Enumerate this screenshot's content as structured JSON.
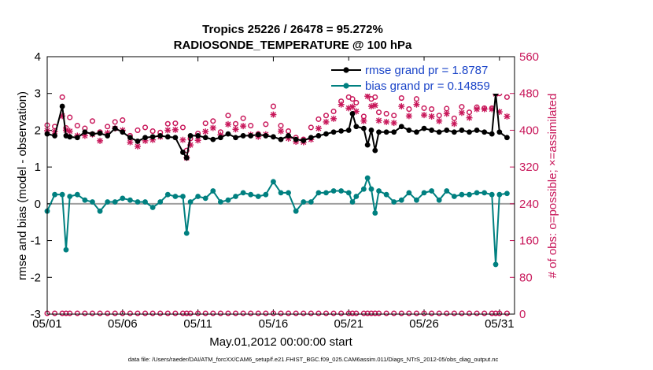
{
  "chart_data": {
    "type": "line",
    "title": "Tropics 25226 / 26478 = 95.272%",
    "subtitle": "RADIOSONDE_TEMPERATURE @ 100 hPa",
    "xlabel": "May.01,2012 00:00:00 start",
    "ylabel": "rmse and bias (model - observation)",
    "ylabel_right": "# of obs: o=possible; ×=assimilated",
    "footer": "data file: /Users/raeder/DAI/ATM_forcXX/CAM6_setup/f.e21.FHIST_BGC.f09_025.CAM6assim.011/Diags_NTrS_2012-05/obs_diag_output.nc",
    "ylim": [
      -3,
      4
    ],
    "ylim_right": [
      0,
      560
    ],
    "xlim": [
      1,
      32
    ],
    "x_ticks": [
      1,
      6,
      11,
      16,
      21,
      26,
      31
    ],
    "x_tick_labels": [
      "05/01",
      "05/06",
      "05/11",
      "05/16",
      "05/21",
      "05/26",
      "05/31"
    ],
    "y_ticks": [
      -3,
      -2,
      -1,
      0,
      1,
      2,
      3,
      4
    ],
    "y_tick_labels": [
      "-3",
      "-2",
      "-1",
      "0",
      "1",
      "2",
      "3",
      "4"
    ],
    "y_ticks_right": [
      0,
      80,
      160,
      240,
      320,
      400,
      480,
      560
    ],
    "y_tick_labels_right": [
      "0",
      "80",
      "160",
      "240",
      "320",
      "400",
      "480",
      "560"
    ],
    "legend_location": "top-right",
    "colors": {
      "rmse": "#000000",
      "bias": "#008080",
      "obs": "#c8175a",
      "zero_line": "#a0a0a0",
      "legend_text": "#1a44c8"
    },
    "x": [
      1.0,
      1.5,
      2.0,
      2.25,
      2.5,
      3.0,
      3.5,
      4.0,
      4.5,
      5.0,
      5.5,
      6.0,
      6.5,
      7.0,
      7.5,
      8.0,
      8.5,
      9.0,
      9.5,
      10.0,
      10.25,
      10.5,
      11.0,
      11.5,
      12.0,
      12.5,
      13.0,
      13.5,
      14.0,
      14.5,
      15.0,
      15.5,
      16.0,
      16.5,
      17.0,
      17.5,
      18.0,
      18.5,
      19.0,
      19.5,
      20.0,
      20.5,
      21.0,
      21.25,
      21.5,
      22.0,
      22.25,
      22.5,
      22.75,
      23.0,
      23.5,
      24.0,
      24.5,
      25.0,
      25.5,
      26.0,
      26.5,
      27.0,
      27.5,
      28.0,
      28.5,
      29.0,
      29.5,
      30.0,
      30.5,
      30.75,
      31.0,
      31.5
    ],
    "series": [
      {
        "name": "rmse grand pr = 1.8787",
        "marker": "filled-circle",
        "values": [
          1.9,
          1.85,
          2.65,
          1.85,
          1.82,
          1.8,
          1.95,
          1.9,
          1.92,
          1.85,
          2.05,
          1.95,
          1.8,
          1.7,
          1.8,
          1.82,
          1.85,
          1.82,
          1.8,
          1.4,
          1.25,
          1.85,
          1.85,
          1.8,
          1.75,
          1.8,
          1.9,
          1.8,
          1.85,
          1.85,
          1.88,
          1.85,
          1.82,
          1.75,
          1.85,
          1.75,
          1.72,
          1.8,
          1.85,
          1.9,
          1.95,
          1.98,
          2.0,
          2.45,
          2.1,
          2.05,
          1.6,
          2.0,
          1.45,
          1.95,
          1.95,
          1.95,
          2.1,
          2.0,
          1.95,
          2.05,
          2.0,
          1.95,
          2.0,
          1.95,
          2.0,
          1.95,
          2.0,
          1.95,
          1.9,
          3.0,
          1.95,
          1.8
        ]
      },
      {
        "name": "bias grand pr = 0.14859",
        "marker": "filled-circle",
        "values": [
          -0.2,
          0.25,
          0.25,
          -1.25,
          0.2,
          0.25,
          0.1,
          0.05,
          -0.2,
          0.05,
          0.05,
          0.15,
          0.1,
          0.05,
          0.05,
          -0.1,
          0.05,
          0.25,
          0.2,
          0.2,
          -0.8,
          0.05,
          0.2,
          0.15,
          0.35,
          0.05,
          0.1,
          0.2,
          0.3,
          0.25,
          0.2,
          0.25,
          0.6,
          0.3,
          0.3,
          -0.2,
          0.05,
          0.05,
          0.3,
          0.3,
          0.35,
          0.35,
          0.3,
          0.05,
          0.2,
          0.4,
          0.7,
          0.4,
          -0.25,
          0.35,
          0.25,
          0.05,
          0.1,
          0.3,
          0.1,
          0.3,
          0.35,
          0.1,
          0.35,
          0.2,
          0.25,
          0.25,
          0.3,
          0.3,
          0.25,
          -1.65,
          0.25,
          0.28
        ]
      }
    ],
    "obs_possible": [
      411,
      408,
      472,
      405,
      428,
      410,
      404,
      420,
      396,
      408,
      418,
      422,
      388,
      400,
      406,
      398,
      395,
      414,
      415,
      406,
      356,
      382,
      393,
      415,
      420,
      396,
      432,
      414,
      426,
      410,
      392,
      413,
      452,
      410,
      398,
      384,
      380,
      406,
      424,
      432,
      441,
      463,
      472,
      468,
      460,
      430,
      495,
      468,
      472,
      439,
      436,
      432,
      470,
      446,
      468,
      448,
      446,
      432,
      447,
      426,
      451,
      439,
      450,
      448,
      448,
      496,
      480,
      472
    ],
    "obs_assimilated": [
      399,
      397,
      431,
      400,
      398,
      388,
      388,
      391,
      377,
      394,
      404,
      400,
      374,
      365,
      377,
      379,
      386,
      400,
      401,
      379,
      340,
      368,
      378,
      397,
      405,
      390,
      413,
      402,
      409,
      390,
      386,
      391,
      434,
      398,
      382,
      375,
      374,
      380,
      404,
      418,
      425,
      456,
      448,
      451,
      441,
      420,
      474,
      452,
      454,
      421,
      418,
      416,
      452,
      431,
      456,
      433,
      430,
      420,
      436,
      414,
      438,
      427,
      446,
      446,
      446,
      479,
      440,
      430
    ]
  }
}
